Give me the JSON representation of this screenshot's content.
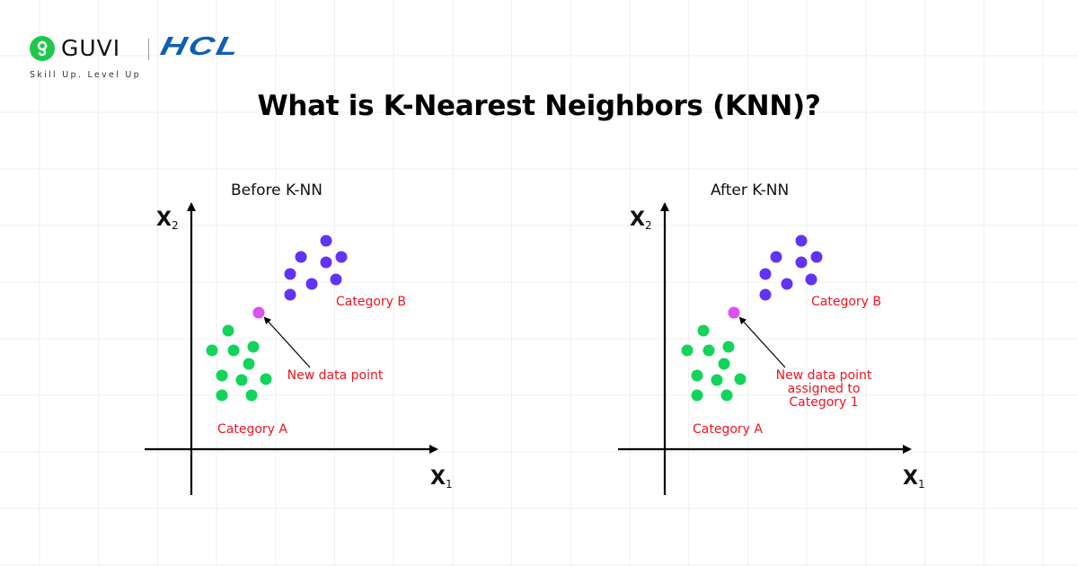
{
  "brand": {
    "logo_primary": "GUVI",
    "logo_secondary": "HCL",
    "tagline": "Skill Up. Level Up",
    "colors": {
      "guvi_green": "#1fc84c",
      "hcl_blue": "#0e5fb4"
    }
  },
  "header": {
    "title": "What is K-Nearest Neighbors (KNN)?"
  },
  "colors": {
    "category_a": "#12d45a",
    "category_b": "#6233f5",
    "new_point": "#dd4ff0",
    "label_red": "#f0141e",
    "axis": "#000000",
    "grid": "#efefef"
  },
  "panels": [
    {
      "title": "Before K-NN",
      "x_axis_label": "X",
      "x_axis_sub": "1",
      "y_axis_label": "X",
      "y_axis_sub": "2",
      "category_a_label": "Category A",
      "category_b_label": "Category B",
      "new_point_label": "New data point",
      "new_point_label_lines": [
        "New data point"
      ]
    },
    {
      "title": "After K-NN",
      "x_axis_label": "X",
      "x_axis_sub": "1",
      "y_axis_label": "X",
      "y_axis_sub": "2",
      "category_a_label": "Category A",
      "category_b_label": "Category B",
      "new_point_label": "New data point assigned to Category 1",
      "new_point_label_lines": [
        "New data point",
        "assigned to",
        "Category 1"
      ]
    }
  ],
  "chart_data": [
    {
      "type": "scatter",
      "title": "Before K-NN",
      "xlabel": "X1",
      "ylabel": "X2",
      "series": [
        {
          "name": "Category A",
          "color": "#12d45a",
          "points": [
            [
              41,
              132
            ],
            [
              23,
              110
            ],
            [
              47,
              110
            ],
            [
              69,
              114
            ],
            [
              64,
              95
            ],
            [
              34,
              82
            ],
            [
              56,
              77
            ],
            [
              83,
              78
            ],
            [
              34,
              60
            ],
            [
              67,
              60
            ]
          ]
        },
        {
          "name": "Category B",
          "color": "#6233f5",
          "points": [
            [
              150,
              232
            ],
            [
              122,
              214
            ],
            [
              150,
              208
            ],
            [
              167,
              214
            ],
            [
              110,
              195
            ],
            [
              134,
              184
            ],
            [
              161,
              189
            ],
            [
              110,
              172
            ]
          ]
        },
        {
          "name": "New data point",
          "color": "#dd4ff0",
          "points": [
            [
              75,
              152
            ]
          ]
        }
      ],
      "annotations": [
        "Category A",
        "Category B",
        "New data point"
      ]
    },
    {
      "type": "scatter",
      "title": "After K-NN",
      "xlabel": "X1",
      "ylabel": "X2",
      "series": [
        {
          "name": "Category A",
          "color": "#12d45a",
          "points": [
            [
              43,
              132
            ],
            [
              25,
              110
            ],
            [
              49,
              110
            ],
            [
              71,
              114
            ],
            [
              66,
              95
            ],
            [
              36,
              82
            ],
            [
              58,
              77
            ],
            [
              84,
              78
            ],
            [
              36,
              60
            ],
            [
              69,
              60
            ]
          ]
        },
        {
          "name": "Category B",
          "color": "#6233f5",
          "points": [
            [
              152,
              232
            ],
            [
              124,
              214
            ],
            [
              152,
              208
            ],
            [
              169,
              214
            ],
            [
              112,
              195
            ],
            [
              136,
              184
            ],
            [
              163,
              189
            ],
            [
              112,
              172
            ]
          ]
        },
        {
          "name": "New data point",
          "color": "#dd4ff0",
          "points": [
            [
              77,
              152
            ]
          ]
        }
      ],
      "annotations": [
        "Category A",
        "Category B",
        "New data point assigned to Category 1"
      ]
    }
  ]
}
